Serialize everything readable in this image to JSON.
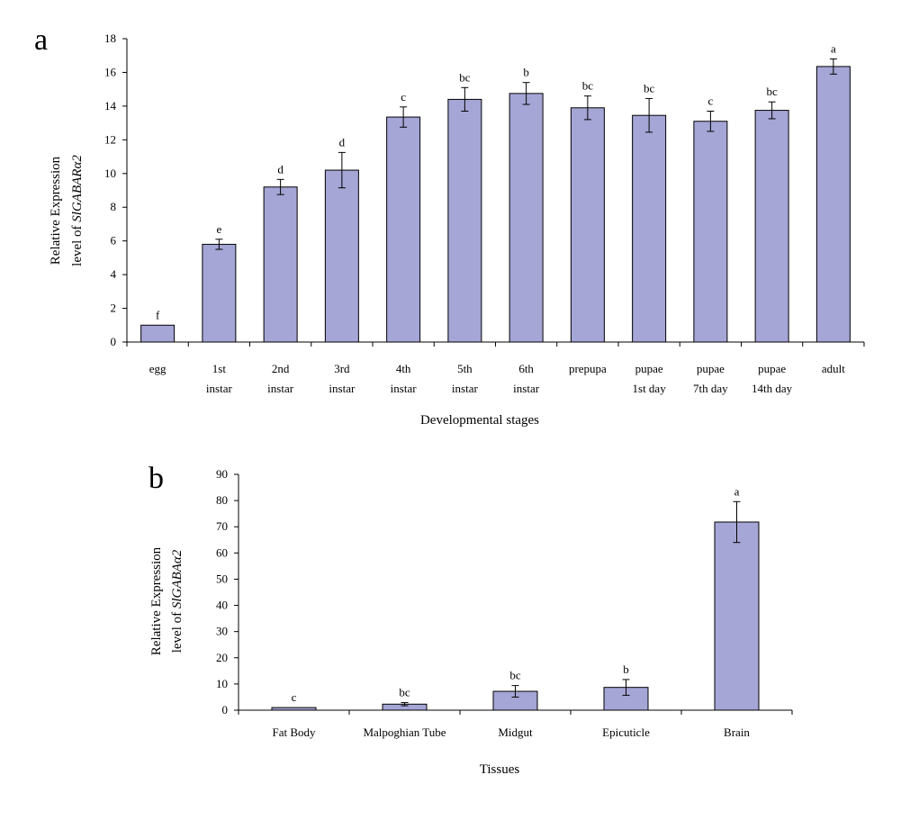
{
  "chart_data": [
    {
      "panel": "a",
      "type": "bar",
      "categories": [
        [
          "egg"
        ],
        [
          "1st",
          "instar"
        ],
        [
          "2nd",
          "instar"
        ],
        [
          "3rd",
          "instar"
        ],
        [
          "4th",
          "instar"
        ],
        [
          "5th",
          "instar"
        ],
        [
          "6th",
          "instar"
        ],
        [
          "prepupa"
        ],
        [
          "pupae",
          "1st day"
        ],
        [
          "pupae",
          "7th day"
        ],
        [
          "pupae",
          "14th day"
        ],
        [
          "adult"
        ]
      ],
      "values": [
        1.0,
        5.8,
        9.2,
        10.2,
        13.35,
        14.4,
        14.75,
        13.9,
        13.45,
        13.1,
        13.75,
        16.35
      ],
      "errors": [
        0.0,
        0.3,
        0.45,
        1.05,
        0.6,
        0.7,
        0.65,
        0.7,
        1.0,
        0.6,
        0.5,
        0.45
      ],
      "significance": [
        "f",
        "e",
        "d",
        "d",
        "c",
        "bc",
        "b",
        "bc",
        "bc",
        "c",
        "bc",
        "a"
      ],
      "ylim": [
        0,
        18
      ],
      "yticks": [
        0,
        2,
        4,
        6,
        8,
        10,
        12,
        14,
        16,
        18
      ],
      "xlabel": "Developmental stages",
      "ylabel": [
        "Relative Expression",
        "level of ",
        "SlGABARα2"
      ],
      "bar_color": "#a5a5d6",
      "grid": false
    },
    {
      "panel": "b",
      "type": "bar",
      "categories": [
        [
          "Fat Body"
        ],
        [
          "Malpoghian Tube"
        ],
        [
          "Midgut"
        ],
        [
          "Epicuticle"
        ],
        [
          "Brain"
        ]
      ],
      "values": [
        1.0,
        2.3,
        7.2,
        8.7,
        71.8
      ],
      "errors": [
        0.0,
        0.6,
        2.2,
        3.0,
        7.8
      ],
      "significance": [
        "c",
        "bc",
        "bc",
        "b",
        "a"
      ],
      "ylim": [
        0,
        90
      ],
      "yticks": [
        0,
        10,
        20,
        30,
        40,
        50,
        60,
        70,
        80,
        90
      ],
      "xlabel": "Tissues",
      "ylabel": [
        "Relative Expression",
        "level of ",
        "SlGABAα2"
      ],
      "bar_color": "#a5a5d6",
      "grid": false
    }
  ]
}
